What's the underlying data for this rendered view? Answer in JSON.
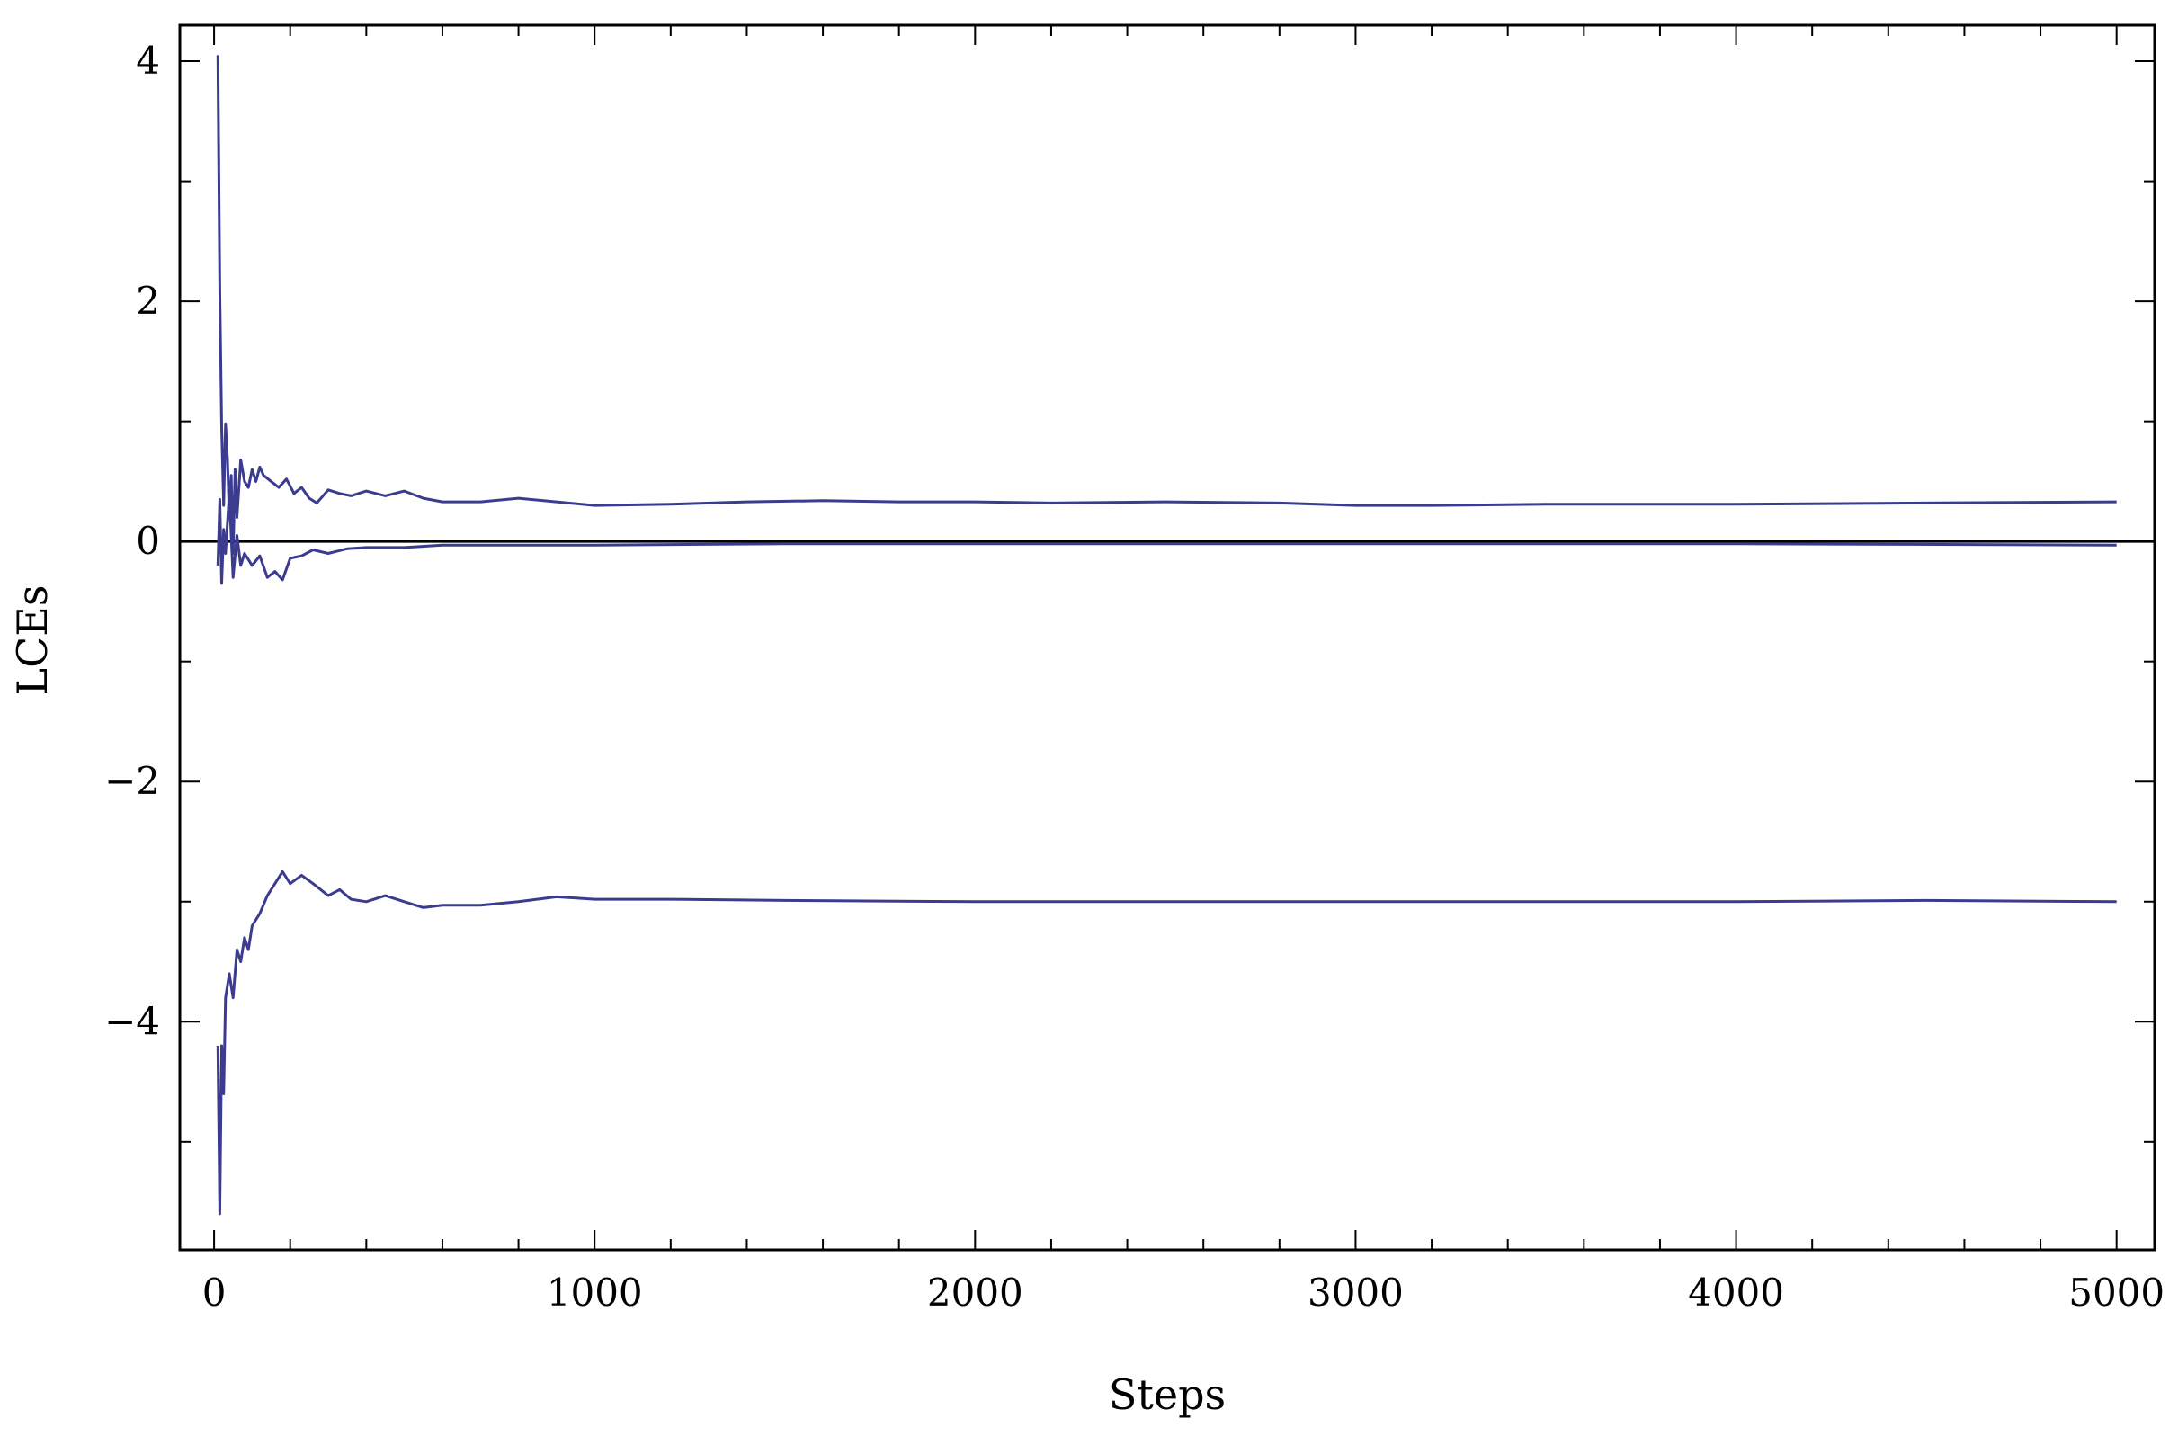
{
  "chart_data": {
    "type": "line",
    "xlabel": "Steps",
    "ylabel": "LCEs",
    "xlim": [
      -90,
      5100
    ],
    "ylim": [
      -5.9,
      4.3
    ],
    "xticks": [
      0,
      1000,
      2000,
      3000,
      4000,
      5000
    ],
    "yticks": [
      -4,
      -2,
      0,
      2,
      4
    ],
    "ytick_labels": [
      "−4",
      "−2",
      "0",
      "2",
      "4"
    ],
    "grid": false,
    "line_color": "#3b3b8f",
    "reference_line": {
      "y": 0,
      "color": "#000000"
    },
    "series": [
      {
        "x": [
          10,
          15,
          20,
          25,
          30,
          35,
          40,
          45,
          50,
          55,
          60,
          70,
          80,
          90,
          100,
          110,
          120,
          130,
          150,
          170,
          190,
          210,
          230,
          250,
          270,
          300,
          330,
          360,
          400,
          450,
          500,
          550,
          600,
          700,
          800,
          900,
          1000,
          1200,
          1400,
          1600,
          1800,
          2000,
          2200,
          2500,
          2800,
          3000,
          3200,
          3500,
          4000,
          4500,
          5000
        ],
        "values": [
          4.05,
          2.1,
          0.95,
          0.3,
          0.98,
          0.7,
          0.2,
          0.55,
          -0.1,
          0.6,
          0.2,
          0.68,
          0.5,
          0.45,
          0.6,
          0.5,
          0.62,
          0.55,
          0.5,
          0.45,
          0.52,
          0.4,
          0.45,
          0.36,
          0.32,
          0.43,
          0.4,
          0.38,
          0.42,
          0.38,
          0.42,
          0.36,
          0.33,
          0.33,
          0.36,
          0.33,
          0.3,
          0.31,
          0.33,
          0.34,
          0.33,
          0.33,
          0.32,
          0.33,
          0.32,
          0.3,
          0.3,
          0.31,
          0.31,
          0.32,
          0.33
        ]
      },
      {
        "x": [
          10,
          15,
          20,
          25,
          30,
          40,
          50,
          60,
          70,
          80,
          100,
          120,
          140,
          160,
          180,
          200,
          230,
          260,
          300,
          350,
          400,
          500,
          600,
          800,
          1000,
          1500,
          2000,
          2500,
          3000,
          4000,
          5000
        ],
        "values": [
          -0.2,
          0.35,
          -0.35,
          0.1,
          -0.1,
          0.4,
          -0.3,
          0.05,
          -0.2,
          -0.1,
          -0.2,
          -0.12,
          -0.3,
          -0.25,
          -0.32,
          -0.14,
          -0.12,
          -0.07,
          -0.1,
          -0.06,
          -0.05,
          -0.05,
          -0.03,
          -0.03,
          -0.03,
          -0.02,
          -0.02,
          -0.02,
          -0.02,
          -0.02,
          -0.03
        ]
      },
      {
        "x": [
          10,
          15,
          20,
          25,
          30,
          40,
          50,
          60,
          70,
          80,
          90,
          100,
          120,
          140,
          160,
          180,
          200,
          230,
          260,
          300,
          330,
          360,
          400,
          450,
          500,
          550,
          600,
          700,
          800,
          900,
          1000,
          1200,
          1500,
          2000,
          2500,
          3000,
          3500,
          4000,
          4500,
          5000
        ],
        "values": [
          -4.2,
          -5.6,
          -4.2,
          -4.6,
          -3.8,
          -3.6,
          -3.8,
          -3.4,
          -3.5,
          -3.3,
          -3.4,
          -3.2,
          -3.1,
          -2.95,
          -2.85,
          -2.75,
          -2.85,
          -2.78,
          -2.85,
          -2.95,
          -2.9,
          -2.98,
          -3.0,
          -2.95,
          -3.0,
          -3.05,
          -3.03,
          -3.03,
          -3.0,
          -2.96,
          -2.98,
          -2.98,
          -2.99,
          -3.0,
          -3.0,
          -3.0,
          -3.0,
          -3.0,
          -2.99,
          -3.0
        ]
      }
    ]
  }
}
